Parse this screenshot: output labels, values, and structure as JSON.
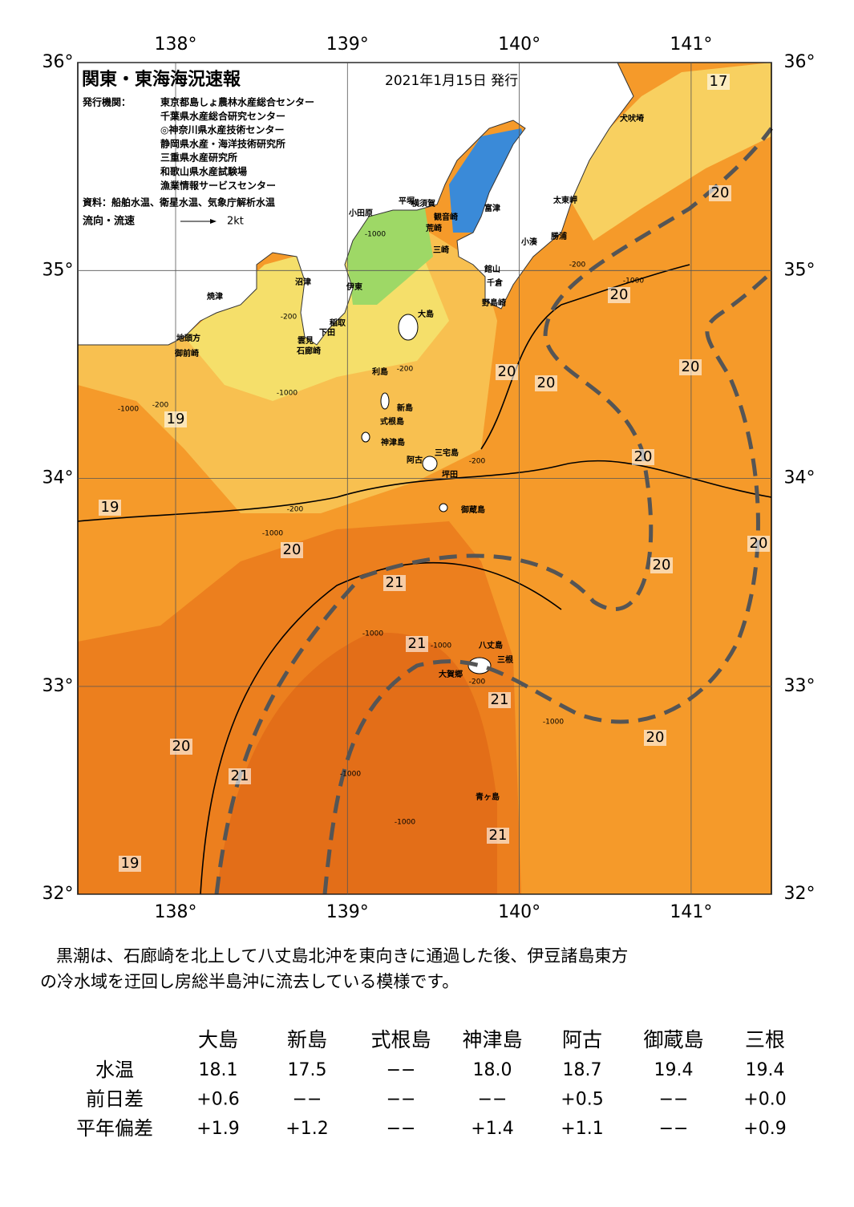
{
  "header": {
    "title": "関東・東海海況速報",
    "date": "2021年1月15日 発行",
    "issuer_label": "発行機関：",
    "issuers": [
      "東京都島しょ農林水産総合センター",
      "千葉県水産総合研究センター",
      "◎神奈川県水産技術センター",
      "静岡県水産・海洋技術研究所",
      "三重県水産研究所",
      "和歌山県水産試験場",
      "漁業情報サービスセンター"
    ],
    "source": "資料：船舶水温、衛星水温、気象庁解析水温",
    "flow_label": "流向・流速",
    "flow_speed": "2kt"
  },
  "axes": {
    "lon_ticks": [
      {
        "value": 138,
        "label": "138°"
      },
      {
        "value": 139,
        "label": "139°"
      },
      {
        "value": 140,
        "label": "140°"
      },
      {
        "value": 141,
        "label": "141°"
      }
    ],
    "lat_ticks": [
      {
        "value": 36,
        "label": "36°"
      },
      {
        "value": 35,
        "label": "35°"
      },
      {
        "value": 34,
        "label": "34°"
      },
      {
        "value": 33,
        "label": "33°"
      },
      {
        "value": 32,
        "label": "32°"
      }
    ]
  },
  "places": [
    "犬吠埼",
    "太東岬",
    "勝浦",
    "小湊",
    "富津",
    "横須賀",
    "観音崎",
    "平塚",
    "荒崎",
    "三崎",
    "小田原",
    "館山",
    "千倉",
    "野島崎",
    "沼津",
    "伊東",
    "大島",
    "焼津",
    "稲取",
    "下田",
    "雲見",
    "石廊崎",
    "地頭方",
    "御前崎",
    "利島",
    "新島",
    "式根島",
    "神津島",
    "三宅島",
    "阿古",
    "坪田",
    "御蔵島",
    "八丈島",
    "三根",
    "大賀郷",
    "青ヶ島"
  ],
  "temperature_labels": [
    17,
    20,
    20,
    20,
    20,
    20,
    19,
    20,
    19,
    20,
    20,
    20,
    21,
    21,
    21,
    20,
    20,
    21,
    21,
    19
  ],
  "depth_labels": [
    -1000,
    -200,
    -1000,
    -200,
    -200,
    -1000,
    -200,
    -1000,
    -200,
    -200,
    -1000,
    -1000,
    -1000,
    -200,
    -1000,
    -1000,
    -1000
  ],
  "summary": [
    "黒潮は、石廊崎を北上して八丈島北沖を東向きに通過した後、伊豆諸島東方",
    "の冷水域を迂回し房総半島沖に流去している模様です。"
  ],
  "table": {
    "columns": [
      "大島",
      "新島",
      "式根島",
      "神津島",
      "阿古",
      "御蔵島",
      "三根"
    ],
    "rows": [
      {
        "label": "水温",
        "cells": [
          "18.1",
          "17.5",
          "−−",
          "18.0",
          "18.7",
          "19.4",
          "19.4"
        ]
      },
      {
        "label": "前日差",
        "cells": [
          "+0.6",
          "−−",
          "−−",
          "−−",
          "+0.5",
          "−−",
          "+0.0"
        ]
      },
      {
        "label": "平年偏差",
        "cells": [
          "+1.9",
          "+1.2",
          "−−",
          "+1.4",
          "+1.1",
          "−−",
          "+0.9"
        ]
      }
    ]
  }
}
